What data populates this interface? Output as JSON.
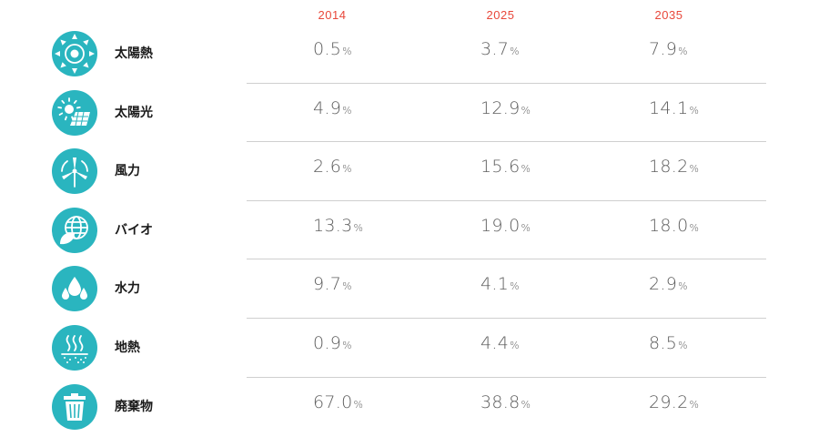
{
  "chart_data": {
    "type": "table",
    "columns": [
      "2014",
      "2025",
      "2035"
    ],
    "unit": "%",
    "rows": [
      {
        "label": "太陽熱",
        "icon": "solar-thermal-icon",
        "values": [
          "0.5",
          "3.7",
          "7.9"
        ]
      },
      {
        "label": "太陽光",
        "icon": "solar-panel-icon",
        "values": [
          "4.9",
          "12.9",
          "14.1"
        ]
      },
      {
        "label": "風力",
        "icon": "wind-turbine-icon",
        "values": [
          "2.6",
          "15.6",
          "18.2"
        ]
      },
      {
        "label": "バイオ",
        "icon": "globe-leaf-icon",
        "values": [
          "13.3",
          "19.0",
          "18.0"
        ]
      },
      {
        "label": "水力",
        "icon": "water-drops-icon",
        "values": [
          "9.7",
          "4.1",
          "2.9"
        ]
      },
      {
        "label": "地熱",
        "icon": "geothermal-icon",
        "values": [
          "0.9",
          "4.4",
          "8.5"
        ]
      },
      {
        "label": "廃棄物",
        "icon": "trash-bin-icon",
        "values": [
          "67.0",
          "38.8",
          "29.2"
        ]
      }
    ]
  },
  "colors": {
    "accent": "#e8473a",
    "icon_bg": "#2ab5bf",
    "value_text": "#5e5e5e"
  }
}
